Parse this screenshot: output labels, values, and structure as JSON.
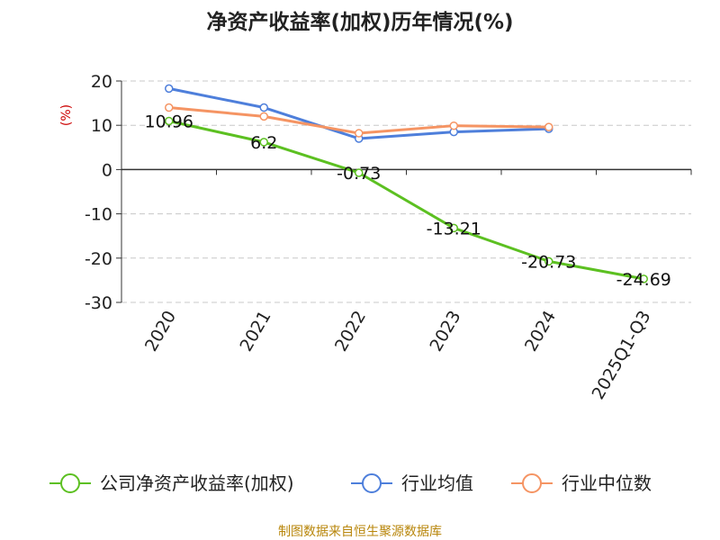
{
  "chart_data": {
    "type": "line",
    "title": "净资产收益率(加权)历年情况(%)",
    "ylabel": "(%)",
    "xlabel": "",
    "categories": [
      "2020",
      "2021",
      "2022",
      "2023",
      "2024",
      "2025Q1-Q3"
    ],
    "ylim": [
      -30,
      20
    ],
    "yticks": [
      20,
      10,
      0,
      -10,
      -20,
      -30
    ],
    "grid": true,
    "legend_position": "bottom",
    "series": [
      {
        "name": "公司净资产收益率(加权)",
        "color": "#5cc021",
        "values": [
          10.96,
          6.2,
          -0.73,
          -13.21,
          -20.73,
          -24.69
        ],
        "labels": [
          "10.96",
          "6.2",
          "-0.73",
          "-13.21",
          "-20.73",
          "-24.69"
        ]
      },
      {
        "name": "行业均值",
        "color": "#4e7fdb",
        "values": [
          18.3,
          14.0,
          7.0,
          8.5,
          9.2,
          null
        ]
      },
      {
        "name": "行业中位数",
        "color": "#f59463",
        "values": [
          14.0,
          12.0,
          8.2,
          9.9,
          9.6,
          null
        ]
      }
    ]
  },
  "source": "制图数据来自恒生聚源数据库"
}
